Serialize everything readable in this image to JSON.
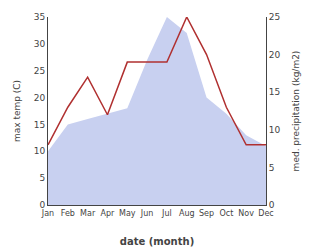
{
  "chart_data": {
    "type": "combo",
    "xlabel": "date (month)",
    "ylabel": "max temp (C)",
    "y2label": "med. precipitation (kg/m2)",
    "categories": [
      "Jan",
      "Feb",
      "Mar",
      "Apr",
      "May",
      "Jun",
      "Jul",
      "Aug",
      "Sep",
      "Oct",
      "Nov",
      "Dec"
    ],
    "series": [
      {
        "type": "area",
        "color": "#c8d0f0",
        "values": [
          10.0,
          15.0,
          16.0,
          17.0,
          18.0,
          27.0,
          35.0,
          32.0,
          20.0,
          17.0,
          13.0,
          11.0
        ]
      },
      {
        "type": "line",
        "color": "#b03030",
        "axis": "y2",
        "values": [
          8.0,
          13.0,
          17.0,
          12.0,
          19.0,
          19.0,
          19.0,
          25.0,
          20.0,
          13.0,
          8.0,
          8.0
        ]
      }
    ],
    "ylim": [
      0,
      35
    ],
    "yticks": [
      0,
      5,
      10,
      15,
      20,
      25,
      30,
      35
    ],
    "y2lim": [
      0,
      25
    ],
    "y2ticks": [
      0,
      5,
      10,
      15,
      20,
      25
    ],
    "grid": false
  }
}
